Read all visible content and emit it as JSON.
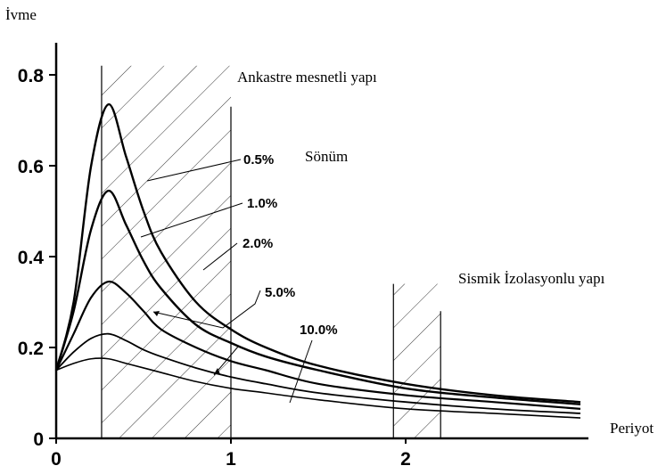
{
  "chart_data": {
    "type": "line",
    "ylabel": "İvme",
    "xlabel": "Periyot",
    "xlim": [
      0,
      3
    ],
    "ylim": [
      0,
      0.8
    ],
    "x_ticks": [
      "0",
      "1",
      "2"
    ],
    "y_ticks": [
      "0",
      "0.2",
      "0.4",
      "0.6",
      "0.8"
    ],
    "grid": false,
    "series": [
      {
        "name": "0.5%",
        "x": [
          0,
          0.1,
          0.2,
          0.3,
          0.4,
          0.5,
          0.6,
          0.8,
          1.0,
          1.2,
          1.5,
          2.0,
          2.5,
          3.0
        ],
        "values": [
          0.15,
          0.3,
          0.6,
          0.735,
          0.62,
          0.5,
          0.41,
          0.3,
          0.24,
          0.2,
          0.16,
          0.12,
          0.095,
          0.08
        ]
      },
      {
        "name": "1.0%",
        "x": [
          0,
          0.1,
          0.2,
          0.3,
          0.4,
          0.5,
          0.6,
          0.8,
          1.0,
          1.2,
          1.5,
          2.0,
          2.5,
          3.0
        ],
        "values": [
          0.15,
          0.28,
          0.46,
          0.545,
          0.47,
          0.39,
          0.33,
          0.25,
          0.21,
          0.18,
          0.15,
          0.11,
          0.09,
          0.075
        ]
      },
      {
        "name": "2.0%",
        "x": [
          0,
          0.1,
          0.2,
          0.3,
          0.4,
          0.5,
          0.6,
          0.8,
          1.0,
          1.2,
          1.5,
          2.0,
          2.5,
          3.0
        ],
        "values": [
          0.15,
          0.23,
          0.31,
          0.345,
          0.32,
          0.28,
          0.24,
          0.2,
          0.17,
          0.15,
          0.12,
          0.095,
          0.08,
          0.065
        ]
      },
      {
        "name": "5.0%",
        "x": [
          0,
          0.1,
          0.2,
          0.3,
          0.4,
          0.5,
          0.6,
          0.8,
          1.0,
          1.2,
          1.5,
          2.0,
          2.5,
          3.0
        ],
        "values": [
          0.15,
          0.19,
          0.22,
          0.23,
          0.215,
          0.195,
          0.18,
          0.155,
          0.135,
          0.12,
          0.1,
          0.08,
          0.065,
          0.055
        ]
      },
      {
        "name": "10.0%",
        "x": [
          0,
          0.1,
          0.2,
          0.3,
          0.4,
          0.5,
          0.6,
          0.8,
          1.0,
          1.2,
          1.5,
          2.0,
          2.5,
          3.0
        ],
        "values": [
          0.15,
          0.165,
          0.175,
          0.175,
          0.165,
          0.155,
          0.145,
          0.125,
          0.11,
          0.1,
          0.085,
          0.065,
          0.055,
          0.045
        ]
      }
    ],
    "regions": [
      {
        "label": "Ankastre mesnetli yapı",
        "x_range": [
          0.26,
          1.0
        ],
        "y_top": 0.82
      },
      {
        "label": "Sismik İzolasyonlu yapı",
        "x_range": [
          1.93,
          2.2
        ],
        "y_top": 0.34
      }
    ],
    "damping_label": "Sönüm"
  }
}
